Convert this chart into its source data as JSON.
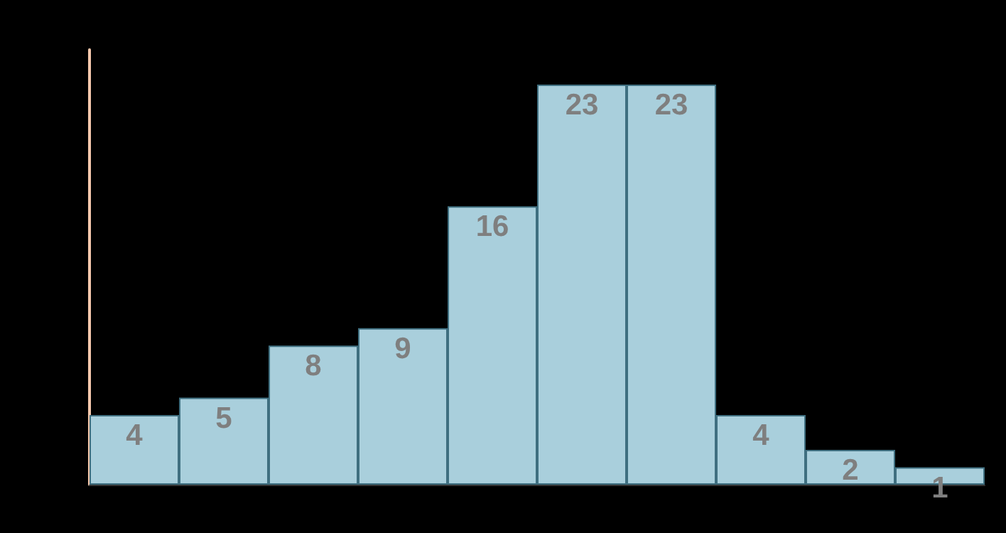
{
  "chart_data": {
    "type": "bar",
    "categories": [
      null,
      null,
      null,
      null,
      null,
      null,
      null,
      null,
      null,
      null
    ],
    "values": [
      4,
      5,
      8,
      9,
      16,
      23,
      23,
      4,
      2,
      1
    ],
    "color": "#a9cfdc",
    "data_labels": true
  }
}
